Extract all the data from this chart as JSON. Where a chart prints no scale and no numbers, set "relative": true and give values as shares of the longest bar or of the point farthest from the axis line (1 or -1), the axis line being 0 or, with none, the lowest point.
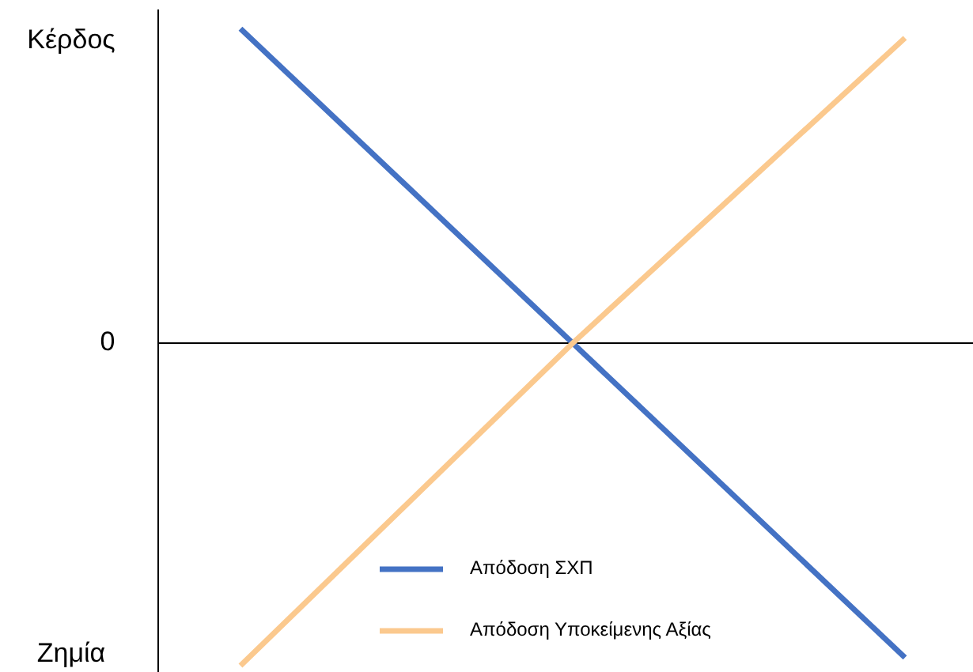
{
  "chart_data": {
    "type": "line",
    "relative": true,
    "categories": [
      null,
      null,
      null
    ],
    "series": [
      {
        "name": "Απόδοση ΣΧΠ",
        "color": "#4472c4",
        "values": [
          0.975,
          0,
          -0.975
        ]
      },
      {
        "name": "Απόδοση Υποκείμενης Αξίας",
        "color": "#fbc98e",
        "values": [
          -1,
          0,
          0.946
        ]
      }
    ],
    "annotations": [
      "Κέρδος",
      "0",
      "Ζημία"
    ],
    "legend": "bottom",
    "marker": "none",
    "line_style": "solid"
  }
}
